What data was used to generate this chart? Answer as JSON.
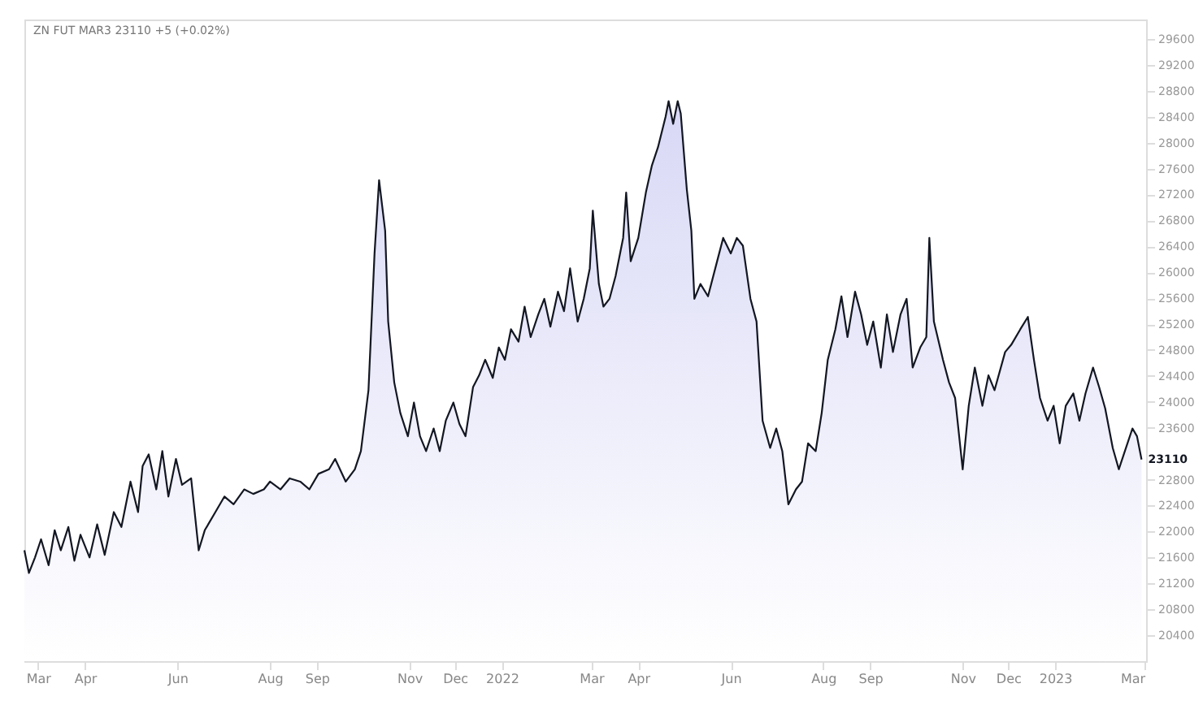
{
  "chart_data": {
    "type": "area",
    "title": "ZN FUT MAR3 23110 +5 (+0.02%)",
    "x": [
      "2021-02-20",
      "2021-02-23",
      "2021-02-27",
      "2021-03-03",
      "2021-03-08",
      "2021-03-12",
      "2021-03-16",
      "2021-03-21",
      "2021-03-25",
      "2021-03-29",
      "2021-04-04",
      "2021-04-09",
      "2021-04-14",
      "2021-04-20",
      "2021-04-25",
      "2021-05-01",
      "2021-05-06",
      "2021-05-09",
      "2021-05-13",
      "2021-05-18",
      "2021-05-22",
      "2021-05-26",
      "2021-05-31",
      "2021-06-04",
      "2021-06-10",
      "2021-06-15",
      "2021-06-19",
      "2021-06-26",
      "2021-07-02",
      "2021-07-08",
      "2021-07-15",
      "2021-07-21",
      "2021-07-28",
      "2021-08-01",
      "2021-08-08",
      "2021-08-14",
      "2021-08-21",
      "2021-08-27",
      "2021-09-02",
      "2021-09-09",
      "2021-09-13",
      "2021-09-20",
      "2021-09-26",
      "2021-09-30",
      "2021-10-05",
      "2021-10-09",
      "2021-10-12",
      "2021-10-16",
      "2021-10-18",
      "2021-10-22",
      "2021-10-26",
      "2021-10-31",
      "2021-11-04",
      "2021-11-08",
      "2021-11-12",
      "2021-11-17",
      "2021-11-21",
      "2021-11-25",
      "2021-11-30",
      "2021-12-04",
      "2021-12-08",
      "2021-12-13",
      "2021-12-17",
      "2021-12-21",
      "2021-12-26",
      "2021-12-30",
      "2022-01-03",
      "2022-01-07",
      "2022-01-12",
      "2022-01-16",
      "2022-01-20",
      "2022-01-25",
      "2022-01-29",
      "2022-02-02",
      "2022-02-07",
      "2022-02-11",
      "2022-02-15",
      "2022-02-20",
      "2022-02-24",
      "2022-02-28",
      "2022-03-02",
      "2022-03-06",
      "2022-03-09",
      "2022-03-13",
      "2022-03-17",
      "2022-03-22",
      "2022-03-24",
      "2022-03-27",
      "2022-04-01",
      "2022-04-06",
      "2022-04-10",
      "2022-04-14",
      "2022-04-19",
      "2022-04-21",
      "2022-04-24",
      "2022-04-27",
      "2022-04-29",
      "2022-05-03",
      "2022-05-06",
      "2022-05-08",
      "2022-05-12",
      "2022-05-17",
      "2022-05-23",
      "2022-05-27",
      "2022-06-01",
      "2022-06-05",
      "2022-06-09",
      "2022-06-14",
      "2022-06-18",
      "2022-06-22",
      "2022-06-27",
      "2022-07-01",
      "2022-07-05",
      "2022-07-09",
      "2022-07-14",
      "2022-07-18",
      "2022-07-22",
      "2022-07-27",
      "2022-07-31",
      "2022-08-04",
      "2022-08-09",
      "2022-08-13",
      "2022-08-17",
      "2022-08-22",
      "2022-08-26",
      "2022-08-30",
      "2022-09-03",
      "2022-09-08",
      "2022-09-12",
      "2022-09-16",
      "2022-09-21",
      "2022-09-25",
      "2022-09-29",
      "2022-10-04",
      "2022-10-08",
      "2022-10-10",
      "2022-10-13",
      "2022-10-19",
      "2022-10-23",
      "2022-10-27",
      "2022-11-01",
      "2022-11-05",
      "2022-11-09",
      "2022-11-14",
      "2022-11-18",
      "2022-11-22",
      "2022-11-29",
      "2022-12-03",
      "2022-12-09",
      "2022-12-14",
      "2022-12-18",
      "2022-12-22",
      "2022-12-27",
      "2022-12-31",
      "2023-01-04",
      "2023-01-08",
      "2023-01-13",
      "2023-01-17",
      "2023-01-21",
      "2023-01-26",
      "2023-01-30",
      "2023-02-03",
      "2023-02-08",
      "2023-02-12",
      "2023-02-16",
      "2023-02-21",
      "2023-02-24",
      "2023-02-27"
    ],
    "series": [
      {
        "color": "#131722",
        "values": [
          21710,
          21360,
          21600,
          21880,
          21480,
          22020,
          21710,
          22070,
          21550,
          21950,
          21600,
          22110,
          21640,
          22300,
          22070,
          22770,
          22300,
          23010,
          23190,
          22650,
          23240,
          22540,
          23120,
          22720,
          22820,
          21710,
          22020,
          22300,
          22540,
          22420,
          22650,
          22580,
          22650,
          22770,
          22650,
          22820,
          22770,
          22650,
          22890,
          22960,
          23120,
          22770,
          22960,
          23240,
          24180,
          26290,
          27420,
          26640,
          25240,
          24300,
          23830,
          23470,
          23990,
          23470,
          23240,
          23590,
          23240,
          23710,
          23990,
          23660,
          23470,
          24230,
          24410,
          24650,
          24370,
          24840,
          24650,
          25120,
          24930,
          25470,
          25000,
          25350,
          25590,
          25160,
          25700,
          25400,
          26060,
          25240,
          25590,
          26060,
          26950,
          25820,
          25470,
          25590,
          25940,
          26530,
          27230,
          26170,
          26530,
          27230,
          27650,
          27930,
          28400,
          28640,
          28290,
          28640,
          28450,
          27280,
          26640,
          25590,
          25820,
          25630,
          26170,
          26530,
          26290,
          26530,
          26410,
          25590,
          25240,
          23710,
          23290,
          23590,
          23240,
          22420,
          22650,
          22770,
          23360,
          23240,
          23830,
          24650,
          25120,
          25630,
          25000,
          25700,
          25350,
          24880,
          25240,
          24530,
          25350,
          24770,
          25350,
          25590,
          24530,
          24840,
          25000,
          26530,
          25240,
          24650,
          24300,
          24060,
          22960,
          23940,
          24530,
          23940,
          24410,
          24180,
          24770,
          24880,
          25120,
          25310,
          24650,
          24060,
          23710,
          23940,
          23360,
          23940,
          24130,
          23710,
          24130,
          24530,
          24230,
          23900,
          23290,
          22960,
          23240,
          23590,
          23470,
          23110
        ]
      }
    ],
    "xlim": [
      "2021-02-20",
      "2023-03-02"
    ],
    "xticks": [
      {
        "value": "2021-03-01",
        "label": "Mar"
      },
      {
        "value": "2021-04-01",
        "label": "Apr"
      },
      {
        "value": "2021-06-01",
        "label": "Jun"
      },
      {
        "value": "2021-08-01",
        "label": "Aug"
      },
      {
        "value": "2021-09-01",
        "label": "Sep"
      },
      {
        "value": "2021-11-01",
        "label": "Nov"
      },
      {
        "value": "2021-12-01",
        "label": "Dec"
      },
      {
        "value": "2022-01-01",
        "label": "2022"
      },
      {
        "value": "2022-03-01",
        "label": "Mar"
      },
      {
        "value": "2022-04-01",
        "label": "Apr"
      },
      {
        "value": "2022-06-01",
        "label": "Jun"
      },
      {
        "value": "2022-08-01",
        "label": "Aug"
      },
      {
        "value": "2022-09-01",
        "label": "Sep"
      },
      {
        "value": "2022-11-01",
        "label": "Nov"
      },
      {
        "value": "2022-12-01",
        "label": "Dec"
      },
      {
        "value": "2023-01-01",
        "label": "2023"
      },
      {
        "value": "2023-03-01",
        "label": "Mar"
      }
    ],
    "ylim": [
      20000,
      29900
    ],
    "yticks": [
      20400,
      20800,
      21200,
      21600,
      22000,
      22400,
      22800,
      23600,
      24000,
      24400,
      24800,
      25200,
      25600,
      26000,
      26400,
      26800,
      27200,
      27600,
      28000,
      28400,
      28800,
      29200,
      29600
    ],
    "annotations": [
      {
        "text": "23110",
        "x": "2023-02-27",
        "y": 23110
      }
    ],
    "grid": false
  }
}
